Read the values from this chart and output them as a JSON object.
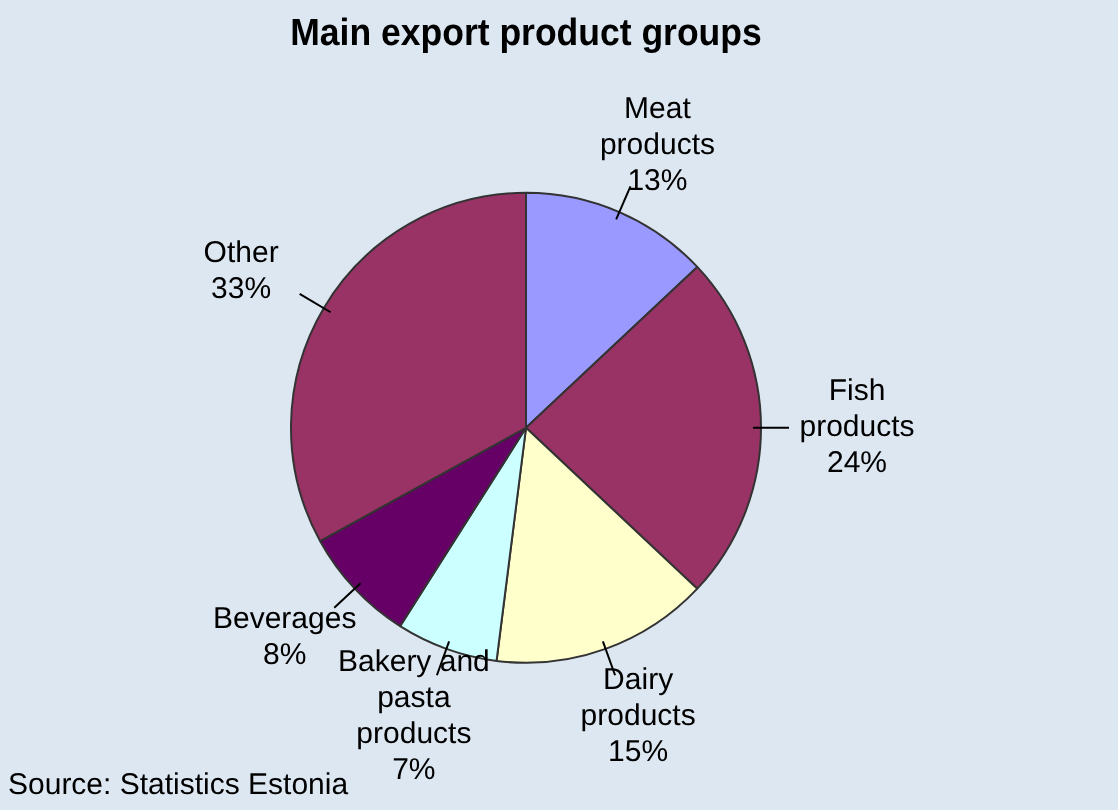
{
  "chart_data": {
    "type": "pie",
    "title": "Main export product groups",
    "categories": [
      "Meat products",
      "Fish products",
      "Dairy products",
      "Bakery and pasta products",
      "Beverages",
      "Other"
    ],
    "values": [
      13,
      24,
      15,
      7,
      8,
      33
    ],
    "value_labels": [
      "13%",
      "24%",
      "15%",
      "7%",
      "8%",
      "33%"
    ],
    "colors": [
      "#9999ff",
      "#993366",
      "#ffffcc",
      "#ccffff",
      "#660066",
      "#993366"
    ],
    "annotations": [
      "Source: Statistics Estonia"
    ],
    "legend": false
  }
}
